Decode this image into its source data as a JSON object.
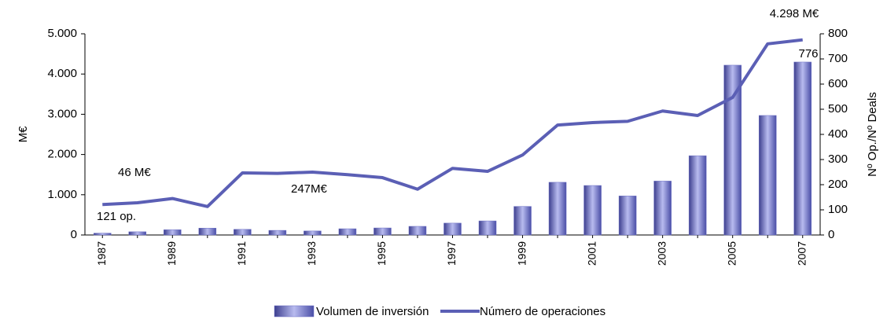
{
  "chart_data": {
    "type": "bar_line",
    "categories": [
      "1987",
      null,
      "1989",
      null,
      "1991",
      null,
      "1993",
      null,
      "1995",
      null,
      "1997",
      null,
      "1999",
      null,
      "2001",
      null,
      "2003",
      null,
      "2005",
      null,
      "2007"
    ],
    "series": [
      {
        "name": "Volumen de inversión",
        "type": "bar",
        "color": "#6a6ec4",
        "axis": "y",
        "values": [
          46,
          80,
          130,
          170,
          140,
          115,
          100,
          155,
          175,
          215,
          295,
          350,
          710,
          1310,
          1230,
          970,
          1340,
          1970,
          4220,
          2970,
          4298
        ]
      },
      {
        "name": "Número de operaciones",
        "type": "line",
        "color": "#5b5fb5",
        "axis": "y2",
        "values": [
          121,
          128,
          145,
          113,
          247,
          245,
          250,
          240,
          228,
          182,
          265,
          253,
          318,
          437,
          447,
          452,
          493,
          475,
          547,
          760,
          776
        ]
      }
    ],
    "ylabel": "M€",
    "y2label": "Nº Op./Nº Deals",
    "ylim": [
      0,
      5000
    ],
    "yticks": [
      {
        "value": 0,
        "label": "0"
      },
      {
        "value": 1000,
        "label": "1.000"
      },
      {
        "value": 2000,
        "label": "2.000"
      },
      {
        "value": 3000,
        "label": "3.000"
      },
      {
        "value": 4000,
        "label": "4.000"
      },
      {
        "value": 5000,
        "label": "5.000"
      }
    ],
    "y2lim": [
      0,
      800
    ],
    "y2ticks": [
      0,
      100,
      200,
      300,
      400,
      500,
      600,
      700,
      800
    ],
    "annotations": [
      "46 M€",
      "121 op.",
      "247M€",
      "4.298 M€",
      "776"
    ],
    "legend": "bottom"
  }
}
